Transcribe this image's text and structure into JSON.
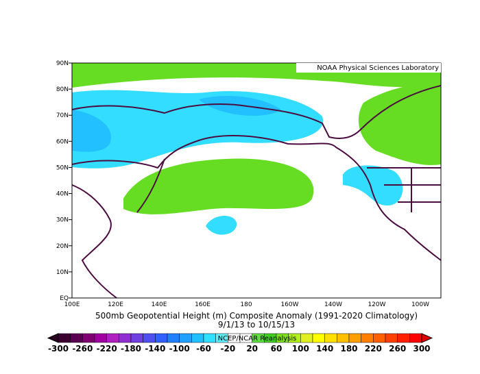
{
  "credit": "NOAA Physical Sciences Laboratory",
  "lat_labels": [
    "90N",
    "80N",
    "70N",
    "60N",
    "50N",
    "40N",
    "30N",
    "20N",
    "10N",
    "EQ"
  ],
  "lon_labels": [
    "100E",
    "120E",
    "140E",
    "160E",
    "180",
    "160W",
    "140W",
    "120W",
    "100W"
  ],
  "title": "500mb Geopotential Height (m) Composite Anomaly (1991-2020 Climatology)",
  "dates": "9/1/13   to 10/15/13",
  "source": "NCEP/NCAR Reanalysis",
  "colorbar_labels": [
    -300,
    -260,
    -220,
    -180,
    -140,
    -100,
    -60,
    -20,
    20,
    60,
    100,
    140,
    180,
    220,
    260,
    300
  ]
}
